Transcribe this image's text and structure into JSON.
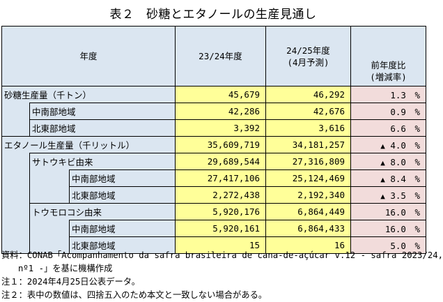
{
  "title": "表２　砂糖とエタノールの生産見通し",
  "header": {
    "col_year": "年度",
    "col_2324": "23/24年度",
    "col_2425_line1": "24/25年度",
    "col_2425_line2": "(4月予測)",
    "col_ratio_line1": "前年度比",
    "col_ratio_line2": "(増減率)"
  },
  "rows": [
    {
      "label": "砂糖生産量（千トン）",
      "v1": "45,679",
      "v2": "46,292",
      "tri": "",
      "ratio": "1.3",
      "pct": "%"
    },
    {
      "label": "中南部地域",
      "v1": "42,286",
      "v2": "42,676",
      "tri": "",
      "ratio": "0.9",
      "pct": "%"
    },
    {
      "label": "北東部地域",
      "v1": "3,392",
      "v2": "3,616",
      "tri": "",
      "ratio": "6.6",
      "pct": "%"
    },
    {
      "label": "エタノール生産量（千リットル）",
      "v1": "35,609,719",
      "v2": "34,181,257",
      "tri": "▲",
      "ratio": "4.0",
      "pct": "%"
    },
    {
      "label": "サトウキビ由来",
      "v1": "29,689,544",
      "v2": "27,316,809",
      "tri": "▲",
      "ratio": "8.0",
      "pct": "%"
    },
    {
      "label": "中南部地域",
      "v1": "27,417,106",
      "v2": "25,124,469",
      "tri": "▲",
      "ratio": "8.4",
      "pct": "%"
    },
    {
      "label": "北東部地域",
      "v1": "2,272,438",
      "v2": "2,192,340",
      "tri": "▲",
      "ratio": "3.5",
      "pct": "%"
    },
    {
      "label": "トウモロコシ由来",
      "v1": "5,920,176",
      "v2": "6,864,449",
      "tri": "",
      "ratio": "16.0",
      "pct": "%"
    },
    {
      "label": "中南部地域",
      "v1": "5,920,161",
      "v2": "6,864,433",
      "tri": "",
      "ratio": "16.0",
      "pct": "%"
    },
    {
      "label": "北東部地域",
      "v1": "15",
      "v2": "16",
      "tri": "",
      "ratio": "5.0",
      "pct": "%"
    }
  ],
  "notes": {
    "source_line1": "資料：CONAB「Acompanhamento da safra brasileira de cana-de-açúcar v.12 - safra 2023/24,",
    "source_line2": "nº1 -」を基に機構作成",
    "note1": "注１：2024年4月25日公表データ。",
    "note2": "注２：表中の数値は、四捨五入のため本文と一致しない場合がある。"
  }
}
